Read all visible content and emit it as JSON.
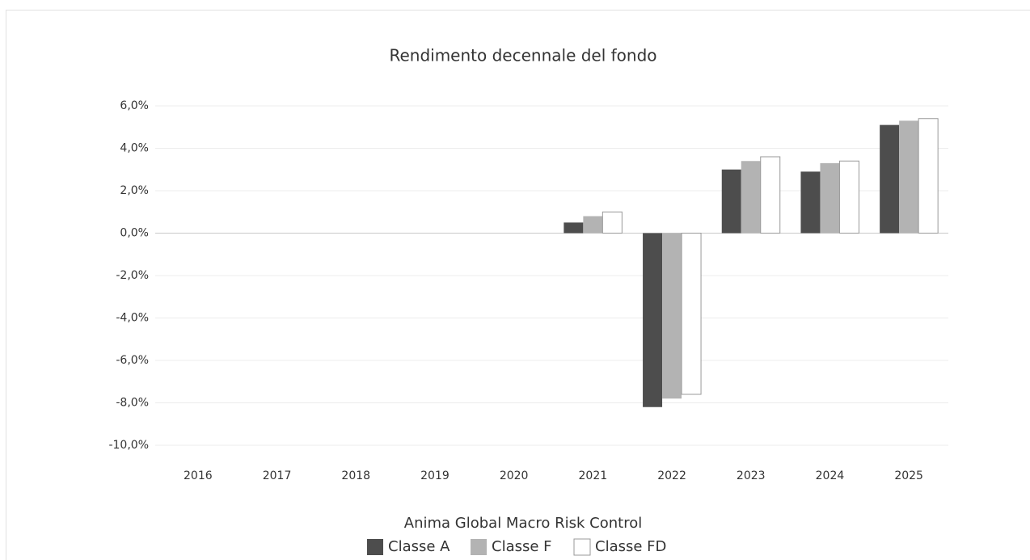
{
  "chart_data": {
    "type": "bar",
    "title": "Rendimento decennale del fondo",
    "legend_title": "Anima Global Macro Risk Control",
    "categories": [
      "2016",
      "2017",
      "2018",
      "2019",
      "2020",
      "2021",
      "2022",
      "2023",
      "2024",
      "2025"
    ],
    "series": [
      {
        "name": "Classe A",
        "color": "#4d4d4d",
        "values": [
          null,
          null,
          null,
          null,
          null,
          0.5,
          -8.2,
          3.0,
          2.9,
          5.1
        ]
      },
      {
        "name": "Classe F",
        "color": "#b3b3b3",
        "values": [
          null,
          null,
          null,
          null,
          null,
          0.8,
          -7.8,
          3.4,
          3.3,
          5.3
        ]
      },
      {
        "name": "Classe FD",
        "color": "#ffffff",
        "values": [
          null,
          null,
          null,
          null,
          null,
          1.0,
          -7.6,
          3.6,
          3.4,
          5.4
        ]
      }
    ],
    "ylim": [
      -10,
      6
    ],
    "yticks": [
      {
        "value": 6,
        "label": "6,0%"
      },
      {
        "value": 4,
        "label": "4,0%"
      },
      {
        "value": 2,
        "label": "2,0%"
      },
      {
        "value": 0,
        "label": "0,0%"
      },
      {
        "value": -2,
        "label": "-2,0%"
      },
      {
        "value": -4,
        "label": "-4,0%"
      },
      {
        "value": -6,
        "label": "-6,0%"
      },
      {
        "value": -8,
        "label": "-8,0%"
      },
      {
        "value": -10,
        "label": "-10,0%"
      }
    ],
    "grid": true,
    "legend": "bottom"
  }
}
